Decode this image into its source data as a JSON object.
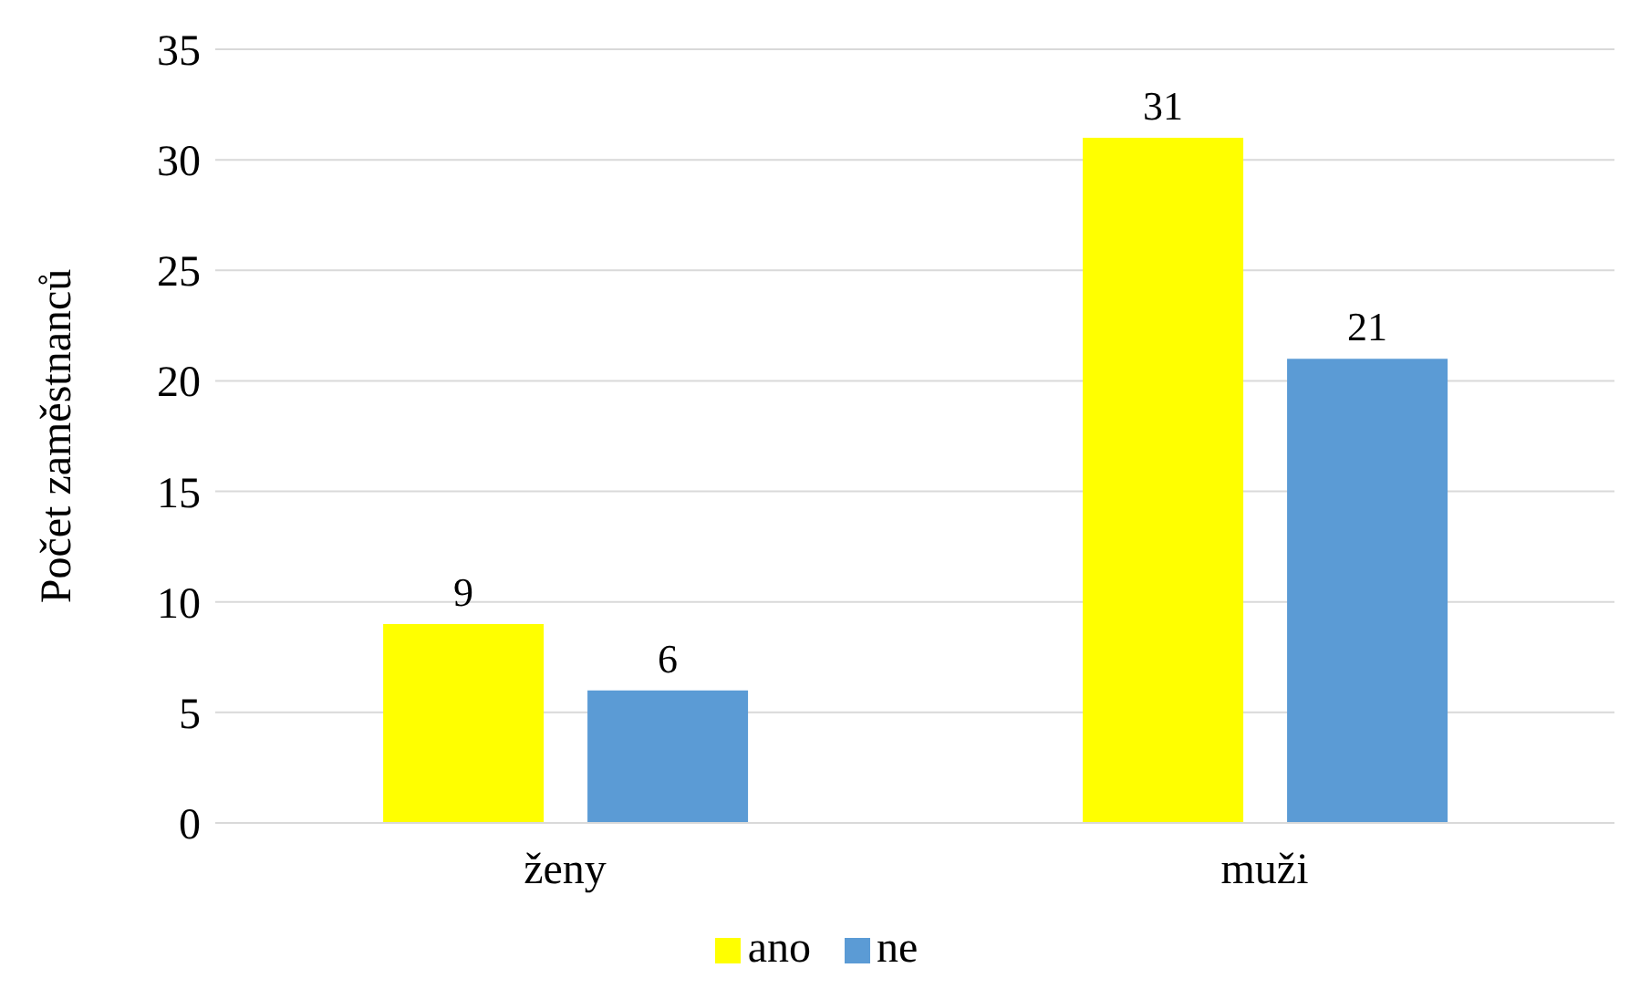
{
  "chart_data": {
    "type": "bar",
    "ylabel": "Počet zaměstnanců",
    "categories": [
      "ženy",
      "muži"
    ],
    "series": [
      {
        "name": "ano",
        "color": "#ffff00",
        "values": [
          9,
          31
        ]
      },
      {
        "name": "ne",
        "color": "#5b9bd5",
        "values": [
          6,
          21
        ]
      }
    ],
    "ylim": [
      0,
      35
    ],
    "yticks": [
      0,
      5,
      10,
      15,
      20,
      25,
      30,
      35
    ],
    "grid": "y",
    "legend": "bottom",
    "data_labels": true
  }
}
